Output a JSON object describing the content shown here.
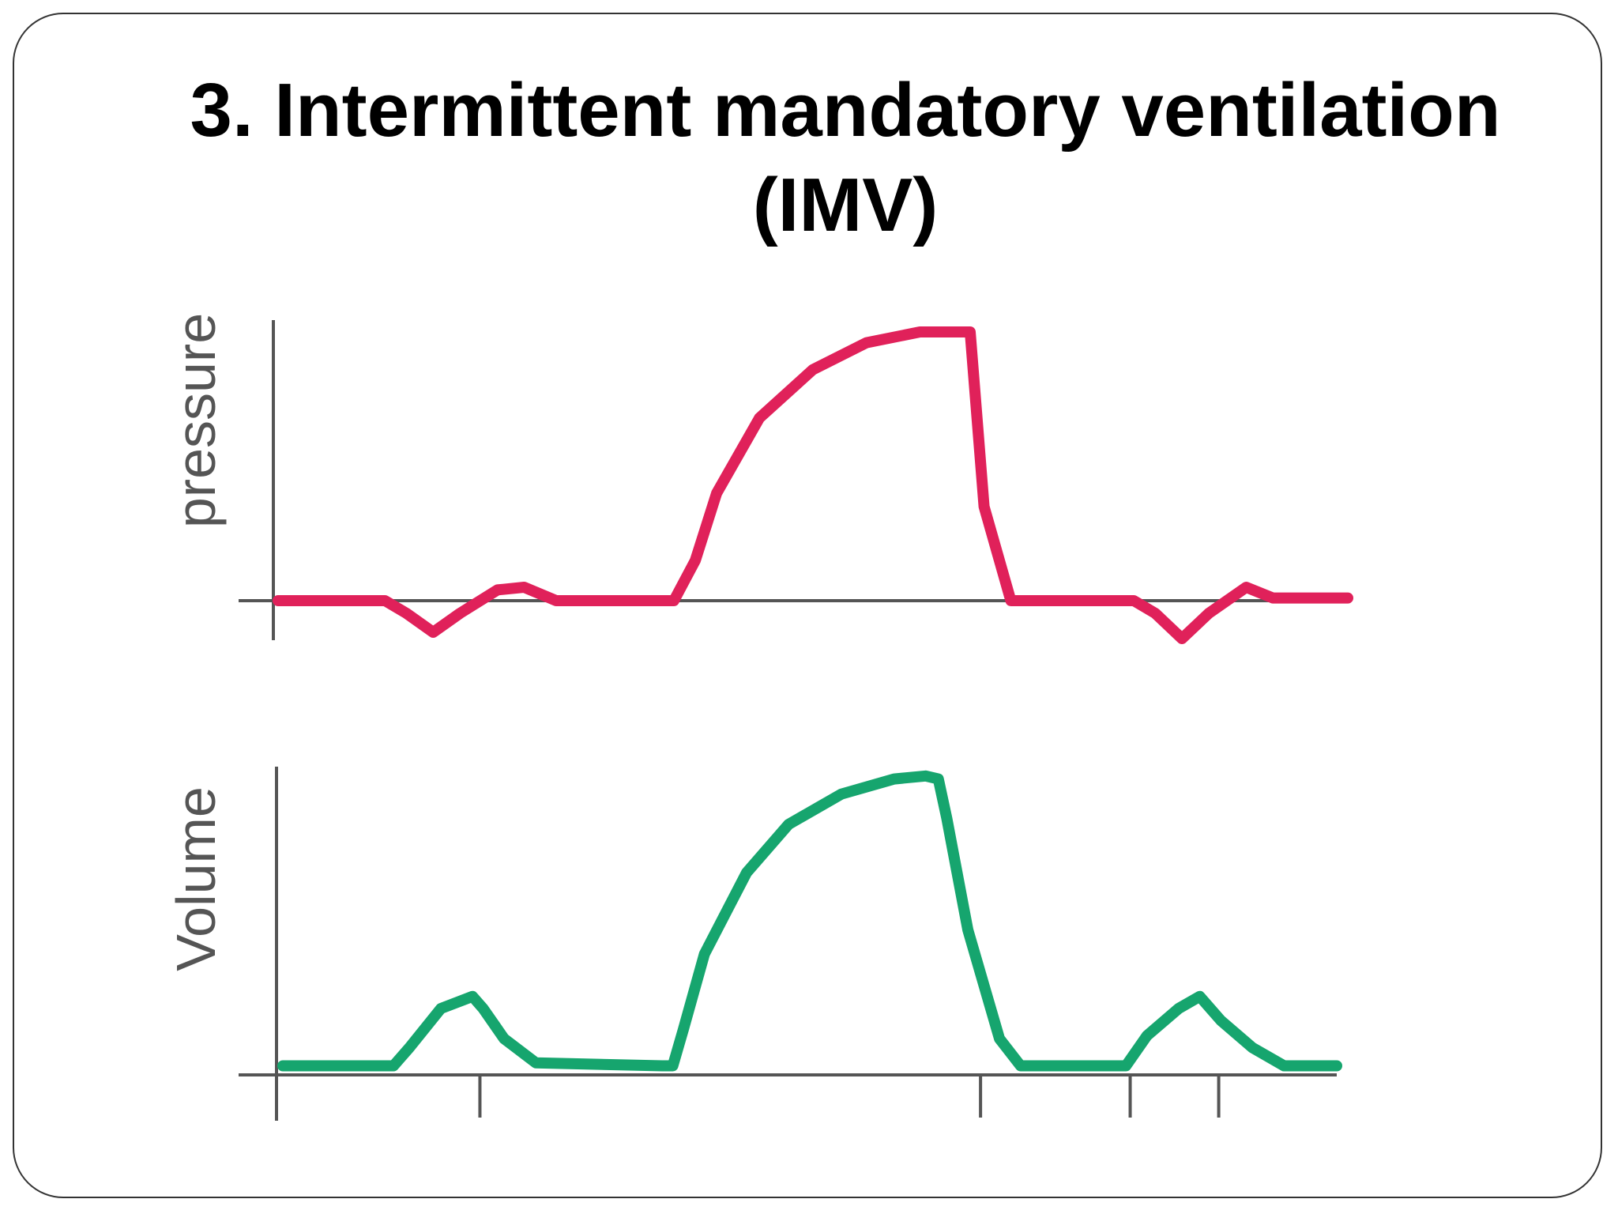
{
  "title": {
    "line1": "3. Intermittent mandatory ventilation",
    "line2": "(IMV)"
  },
  "colors": {
    "pressure": "#e0215a",
    "volume": "#16a56e",
    "axis": "#555555"
  },
  "chart_data": [
    {
      "type": "line",
      "title": "",
      "xlabel": "",
      "ylabel": "pressure",
      "xlim": [
        0,
        100
      ],
      "ylim": [
        -10,
        100
      ],
      "grid": false,
      "series": [
        {
          "x": [
            0,
            10,
            12,
            14.5,
            17,
            20.5,
            23,
            26,
            35,
            37,
            39,
            41,
            45,
            50,
            55,
            60,
            63,
            64.7,
            66,
            68.5,
            71,
            80,
            82,
            84.5,
            87,
            90.5,
            93,
            100
          ],
          "y": [
            0,
            0,
            -4,
            -10,
            -4,
            4,
            5,
            0,
            0,
            0,
            15,
            40,
            68,
            86,
            96,
            100,
            100,
            100,
            35,
            0,
            0,
            0,
            -4,
            -12,
            -4,
            5,
            1,
            1
          ]
        }
      ]
    },
    {
      "type": "line",
      "title": "",
      "xlabel": "",
      "ylabel": "Volume",
      "xlim": [
        0,
        100
      ],
      "ylim": [
        0,
        100
      ],
      "grid": false,
      "xtick_marks": [
        18.7,
        66.2,
        80.4,
        88.8
      ],
      "series": [
        {
          "x": [
            0,
            9,
            10.5,
            12,
            15,
            18,
            19,
            21,
            24,
            36,
            37,
            38,
            40,
            44,
            48,
            53,
            58,
            61,
            62.2,
            63,
            65,
            68,
            70,
            79,
            80,
            82,
            85,
            87,
            89,
            92,
            95,
            98,
            100
          ],
          "y": [
            3,
            3,
            3,
            9,
            22,
            26,
            22,
            12,
            4,
            3,
            3,
            15,
            40,
            67,
            83,
            93,
            98,
            99,
            98,
            85,
            48,
            12,
            3,
            3,
            3,
            13,
            22,
            26,
            18,
            9,
            3,
            3,
            3
          ]
        }
      ]
    }
  ]
}
